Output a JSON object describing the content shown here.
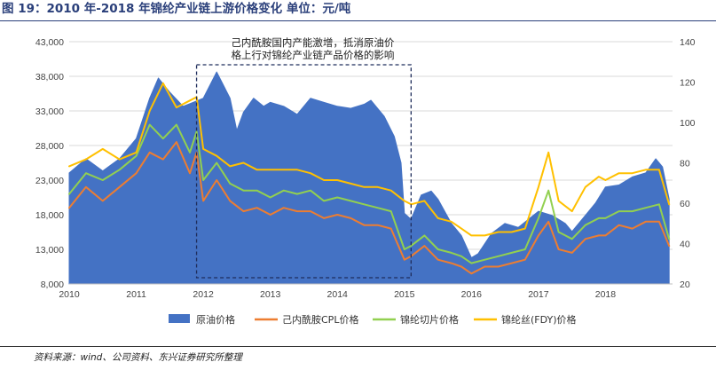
{
  "header": {
    "title": "图 19：2010 年-2018 年锦纶产业链上游价格变化 单位：元/吨"
  },
  "footer": {
    "source": "资料来源：wind、公司资料、东兴证券研究所整理"
  },
  "chart_data": {
    "type": "line",
    "title": "图 19：2010 年-2018 年锦纶产业链上游价格变化 单位：元/吨",
    "x_tick_labels": [
      "2010",
      "2011",
      "2012",
      "2013",
      "2014",
      "2015",
      "2016",
      "2017",
      "2018"
    ],
    "x_range": [
      2010.0,
      2019.0
    ],
    "y_left": {
      "range": [
        8000,
        43000
      ],
      "ticks": [
        "8,000",
        "13,000",
        "18,000",
        "23,000",
        "28,000",
        "33,000",
        "38,000",
        "43,000"
      ]
    },
    "y_right": {
      "range": [
        20,
        140
      ],
      "ticks": [
        "20",
        "40",
        "60",
        "80",
        "100",
        "120",
        "140"
      ]
    },
    "annotation": {
      "line1": "己内酰胺国内产能激增，抵消原油价",
      "line2": "格上行对锦纶产业链产品价格的影响",
      "x_range": [
        2011.9,
        2015.1
      ]
    },
    "legend": [
      "原油价格",
      "己内酰胺CPL价格",
      "锦纶切片价格",
      "锦纶丝(FDY)价格"
    ],
    "colors": {
      "crude": "#4472c4",
      "cpl": "#ed7d31",
      "chip": "#92d050",
      "fdy": "#ffc000"
    },
    "series": [
      {
        "name": "原油价格",
        "axis": "right",
        "kind": "area",
        "x": [
          2010.0,
          2010.25,
          2010.5,
          2010.75,
          2011.0,
          2011.2,
          2011.33,
          2011.5,
          2011.7,
          2011.85,
          2012.0,
          2012.2,
          2012.4,
          2012.5,
          2012.6,
          2012.75,
          2012.9,
          2013.0,
          2013.2,
          2013.4,
          2013.6,
          2013.8,
          2014.0,
          2014.2,
          2014.4,
          2014.5,
          2014.7,
          2014.85,
          2014.95,
          2015.0,
          2015.1,
          2015.25,
          2015.4,
          2015.5,
          2015.7,
          2015.85,
          2016.0,
          2016.1,
          2016.3,
          2016.5,
          2016.7,
          2016.85,
          2017.0,
          2017.2,
          2017.4,
          2017.5,
          2017.7,
          2017.85,
          2018.0,
          2018.2,
          2018.4,
          2018.6,
          2018.75,
          2018.85,
          2018.95
        ],
        "values": [
          75,
          82,
          76,
          82,
          92,
          112,
          122,
          115,
          108,
          110,
          112,
          125,
          112,
          96,
          105,
          112,
          108,
          110,
          108,
          104,
          112,
          110,
          108,
          107,
          109,
          111,
          103,
          93,
          80,
          55,
          52,
          64,
          66,
          62,
          50,
          44,
          33,
          35,
          45,
          50,
          48,
          52,
          56,
          54,
          50,
          46,
          54,
          60,
          68,
          69,
          73,
          75,
          82,
          78,
          62
        ]
      },
      {
        "name": "己内酰胺CPL价格",
        "axis": "left",
        "kind": "line",
        "x": [
          2010.0,
          2010.25,
          2010.5,
          2010.75,
          2011.0,
          2011.2,
          2011.4,
          2011.6,
          2011.8,
          2011.9,
          2012.0,
          2012.2,
          2012.4,
          2012.6,
          2012.8,
          2013.0,
          2013.2,
          2013.4,
          2013.6,
          2013.8,
          2014.0,
          2014.2,
          2014.4,
          2014.6,
          2014.8,
          2015.0,
          2015.1,
          2015.3,
          2015.5,
          2015.7,
          2015.85,
          2016.0,
          2016.2,
          2016.4,
          2016.6,
          2016.8,
          2017.0,
          2017.15,
          2017.3,
          2017.5,
          2017.7,
          2017.9,
          2018.0,
          2018.2,
          2018.4,
          2018.6,
          2018.8,
          2018.95
        ],
        "values": [
          19000,
          22000,
          20000,
          22000,
          24000,
          27000,
          26000,
          28500,
          24000,
          27000,
          20000,
          23000,
          20000,
          18500,
          19000,
          18000,
          19000,
          18500,
          18500,
          17500,
          18000,
          17500,
          16500,
          16500,
          16000,
          11500,
          12000,
          13500,
          11500,
          11000,
          10500,
          9500,
          10500,
          10500,
          11000,
          11500,
          15000,
          17000,
          13000,
          12500,
          14500,
          15000,
          15000,
          16500,
          16000,
          17000,
          17000,
          13500
        ]
      },
      {
        "name": "锦纶切片价格",
        "axis": "left",
        "kind": "line",
        "x": [
          2010.0,
          2010.25,
          2010.5,
          2010.75,
          2011.0,
          2011.2,
          2011.4,
          2011.6,
          2011.8,
          2011.9,
          2012.0,
          2012.2,
          2012.4,
          2012.6,
          2012.8,
          2013.0,
          2013.2,
          2013.4,
          2013.6,
          2013.8,
          2014.0,
          2014.2,
          2014.4,
          2014.6,
          2014.8,
          2015.0,
          2015.1,
          2015.3,
          2015.5,
          2015.7,
          2015.85,
          2016.0,
          2016.2,
          2016.4,
          2016.6,
          2016.8,
          2017.0,
          2017.15,
          2017.3,
          2017.5,
          2017.7,
          2017.9,
          2018.0,
          2018.2,
          2018.4,
          2018.6,
          2018.8,
          2018.95
        ],
        "values": [
          21000,
          24000,
          23000,
          24500,
          26500,
          31000,
          29000,
          31000,
          27000,
          30000,
          23000,
          25500,
          22500,
          21500,
          21500,
          20500,
          21500,
          21000,
          21500,
          20000,
          20500,
          20000,
          19500,
          19000,
          18500,
          13000,
          13500,
          15000,
          13000,
          12500,
          12000,
          11000,
          11500,
          12000,
          12500,
          13000,
          17500,
          21500,
          15500,
          14500,
          16500,
          17500,
          17500,
          18500,
          18500,
          19000,
          19500,
          14500
        ]
      },
      {
        "name": "锦纶丝(FDY)价格",
        "axis": "left",
        "kind": "line",
        "x": [
          2010.0,
          2010.25,
          2010.5,
          2010.75,
          2011.0,
          2011.2,
          2011.4,
          2011.6,
          2011.8,
          2011.9,
          2012.0,
          2012.2,
          2012.4,
          2012.6,
          2012.8,
          2013.0,
          2013.2,
          2013.4,
          2013.6,
          2013.8,
          2014.0,
          2014.2,
          2014.4,
          2014.6,
          2014.8,
          2015.0,
          2015.1,
          2015.3,
          2015.5,
          2015.7,
          2015.85,
          2016.0,
          2016.2,
          2016.4,
          2016.6,
          2016.8,
          2017.0,
          2017.15,
          2017.3,
          2017.5,
          2017.7,
          2017.9,
          2018.0,
          2018.2,
          2018.4,
          2018.6,
          2018.8,
          2018.95
        ],
        "values": [
          25000,
          26000,
          27500,
          26000,
          27000,
          33000,
          37000,
          33500,
          34500,
          35000,
          27500,
          26500,
          25000,
          25500,
          24500,
          24500,
          24500,
          24500,
          24000,
          23000,
          23000,
          22500,
          22000,
          22000,
          21500,
          20000,
          19500,
          20000,
          17500,
          17000,
          16000,
          15000,
          15000,
          15500,
          15500,
          16000,
          22000,
          27000,
          20000,
          18500,
          22000,
          23500,
          23000,
          24000,
          24000,
          24500,
          24500,
          19500
        ]
      }
    ]
  }
}
